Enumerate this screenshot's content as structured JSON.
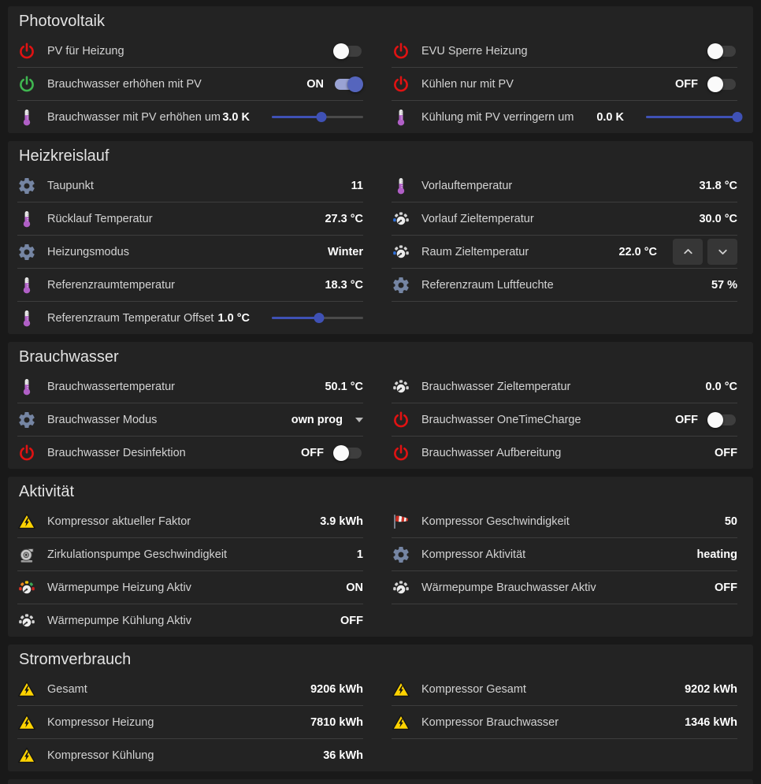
{
  "theme": {
    "page_bg": "#191919",
    "card_bg": "#232323",
    "accent_indigo": "#3f51b5",
    "toggle_on_track": "#9aa3d4",
    "toggle_on_knob": "#5565bd",
    "power_red": "#e01212",
    "power_green": "#3fb650",
    "gear_color": "#7585a3",
    "thermometer_purple": "#b05fc6",
    "warning_yellow": "#ffd300",
    "windsock_red": "#d22f23",
    "gauge_blue": "#2f6fd8"
  },
  "sections": [
    {
      "title": "Photovoltaik",
      "columns": [
        {
          "rows": [
            {
              "icon": "power-red",
              "label": "PV für Heizung",
              "control": {
                "type": "toggle",
                "on": false
              }
            },
            {
              "icon": "power-green",
              "label": "Brauchwasser erhöhen mit PV",
              "value": "ON",
              "control": {
                "type": "toggle",
                "on": true
              }
            },
            {
              "icon": "thermometer",
              "label": "Brauchwasser mit PV erhöhen um",
              "value": "3.0 K",
              "control": {
                "type": "slider",
                "percent": 54
              }
            }
          ]
        },
        {
          "rows": [
            {
              "icon": "power-red",
              "label": "EVU Sperre Heizung",
              "control": {
                "type": "toggle",
                "on": false
              }
            },
            {
              "icon": "power-red",
              "label": "Kühlen nur mit PV",
              "value": "OFF",
              "control": {
                "type": "toggle",
                "on": false
              }
            },
            {
              "icon": "thermometer",
              "label": "Kühlung mit PV verringern um",
              "value": "0.0 K",
              "control": {
                "type": "slider",
                "percent": 100
              }
            }
          ]
        }
      ]
    },
    {
      "title": "Heizkreislauf",
      "columns": [
        {
          "rows": [
            {
              "icon": "gear",
              "label": "Taupunkt",
              "value": "11"
            },
            {
              "icon": "thermometer",
              "label": "Rücklauf Temperatur",
              "value": "27.3 °C"
            },
            {
              "icon": "gear",
              "label": "Heizungsmodus",
              "value": "Winter"
            },
            {
              "icon": "thermometer",
              "label": "Referenzraumtemperatur",
              "value": "18.3 °C"
            },
            {
              "icon": "thermometer",
              "label": "Referenzraum Temperatur Offset",
              "value": "1.0 °C",
              "control": {
                "type": "slider",
                "percent": 52
              }
            }
          ]
        },
        {
          "trailing_rule": true,
          "rows": [
            {
              "icon": "thermometer",
              "label": "Vorlauftemperatur",
              "value": "31.8 °C"
            },
            {
              "icon": "gauge-blue",
              "label": "Vorlauf Zieltemperatur",
              "value": "30.0 °C"
            },
            {
              "icon": "gauge-blue",
              "label": "Raum Zieltemperatur",
              "value": "22.0 °C",
              "control": {
                "type": "stepper"
              }
            },
            {
              "icon": "gear",
              "label": "Referenzraum Luftfeuchte",
              "value": "57 %"
            }
          ]
        }
      ]
    },
    {
      "title": "Brauchwasser",
      "columns": [
        {
          "rows": [
            {
              "icon": "thermometer",
              "label": "Brauchwassertemperatur",
              "value": "50.1 °C"
            },
            {
              "icon": "gear",
              "label": "Brauchwasser Modus",
              "value": "own prog",
              "control": {
                "type": "dropdown"
              }
            },
            {
              "icon": "power-red",
              "label": "Brauchwasser Desinfektion",
              "value": "OFF",
              "control": {
                "type": "toggle",
                "on": false
              }
            }
          ]
        },
        {
          "rows": [
            {
              "icon": "gauge-plain",
              "label": "Brauchwasser Zieltemperatur",
              "value": "0.0 °C"
            },
            {
              "icon": "power-red",
              "label": "Brauchwasser OneTimeCharge",
              "value": "OFF",
              "control": {
                "type": "toggle",
                "on": false
              }
            },
            {
              "icon": "power-red",
              "label": "Brauchwasser Aufbereitung",
              "value": "OFF"
            }
          ]
        }
      ]
    },
    {
      "title": "Aktivität",
      "columns": [
        {
          "rows": [
            {
              "icon": "warning",
              "label": "Kompressor aktueller Faktor",
              "value": "3.9 kWh"
            },
            {
              "icon": "pump",
              "label": "Zirkulationspumpe Geschwindigkeit",
              "value": "1"
            },
            {
              "icon": "gauge-color",
              "label": "Wärmepumpe Heizung Aktiv",
              "value": "ON"
            },
            {
              "icon": "gauge-plain",
              "label": "Wärmepumpe Kühlung Aktiv",
              "value": "OFF"
            }
          ]
        },
        {
          "trailing_rule": true,
          "rows": [
            {
              "icon": "windsock",
              "label": "Kompressor Geschwindigkeit",
              "value": "50"
            },
            {
              "icon": "gear",
              "label": "Kompressor Aktivität",
              "value": "heating"
            },
            {
              "icon": "gauge-plain",
              "label": "Wärmepumpe Brauchwasser Aktiv",
              "value": "OFF"
            }
          ]
        }
      ]
    },
    {
      "title": "Stromverbrauch",
      "columns": [
        {
          "rows": [
            {
              "icon": "warning",
              "label": "Gesamt",
              "value": "9206 kWh"
            },
            {
              "icon": "warning",
              "label": "Kompressor Heizung",
              "value": "7810 kWh"
            },
            {
              "icon": "warning",
              "label": "Kompressor Kühlung",
              "value": "36 kWh"
            }
          ]
        },
        {
          "trailing_rule": true,
          "rows": [
            {
              "icon": "warning",
              "label": "Kompressor Gesamt",
              "value": "9202 kWh"
            },
            {
              "icon": "warning",
              "label": "Kompressor Brauchwasser",
              "value": "1346 kWh"
            }
          ]
        }
      ]
    }
  ]
}
